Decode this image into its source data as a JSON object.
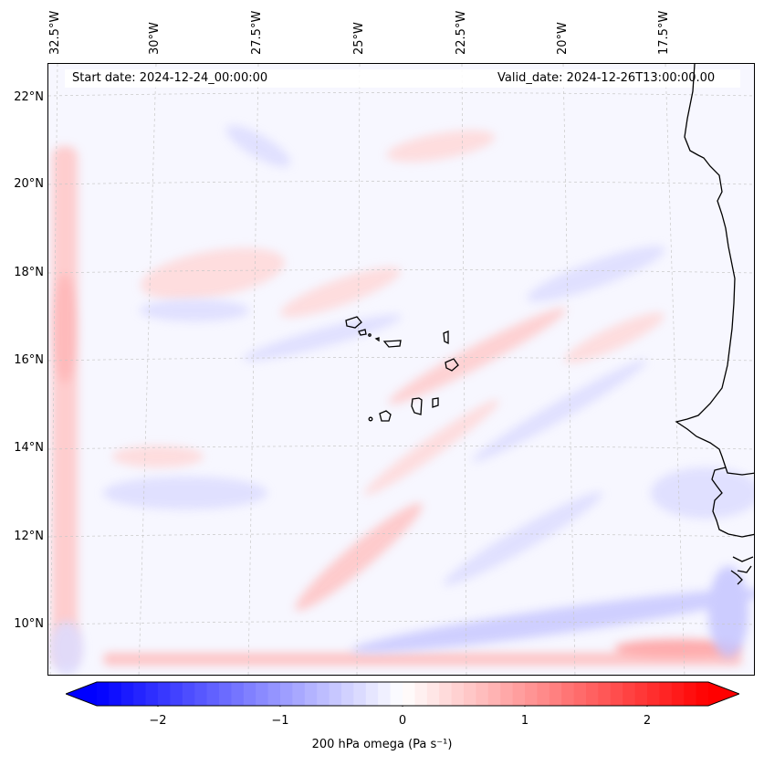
{
  "map": {
    "start_date": "Start date: 2024-12-24_00:00:00",
    "valid_date": "Valid_date: 2024-12-26T13:00:00.00",
    "longitude_labels": [
      "32.5°W",
      "30°W",
      "27.5°W",
      "25°W",
      "22.5°W",
      "20°W",
      "17.5°W"
    ],
    "latitude_labels": [
      "22°N",
      "20°N",
      "18°N",
      "16°N",
      "14°N",
      "12°N",
      "10°N"
    ],
    "colors": {
      "negative": "#0000ff",
      "zero": "#ffffff",
      "positive": "#ff0000",
      "coastline": "#000000",
      "gridline": "#bbbbbb"
    }
  },
  "colorbar": {
    "label": "200 hPa omega (Pa s⁻¹)",
    "ticks": [
      "−2",
      "−1",
      "0",
      "1",
      "2"
    ],
    "tick_values": [
      -2,
      -1,
      0,
      1,
      2
    ],
    "range": [
      -2.5,
      2.5
    ]
  }
}
